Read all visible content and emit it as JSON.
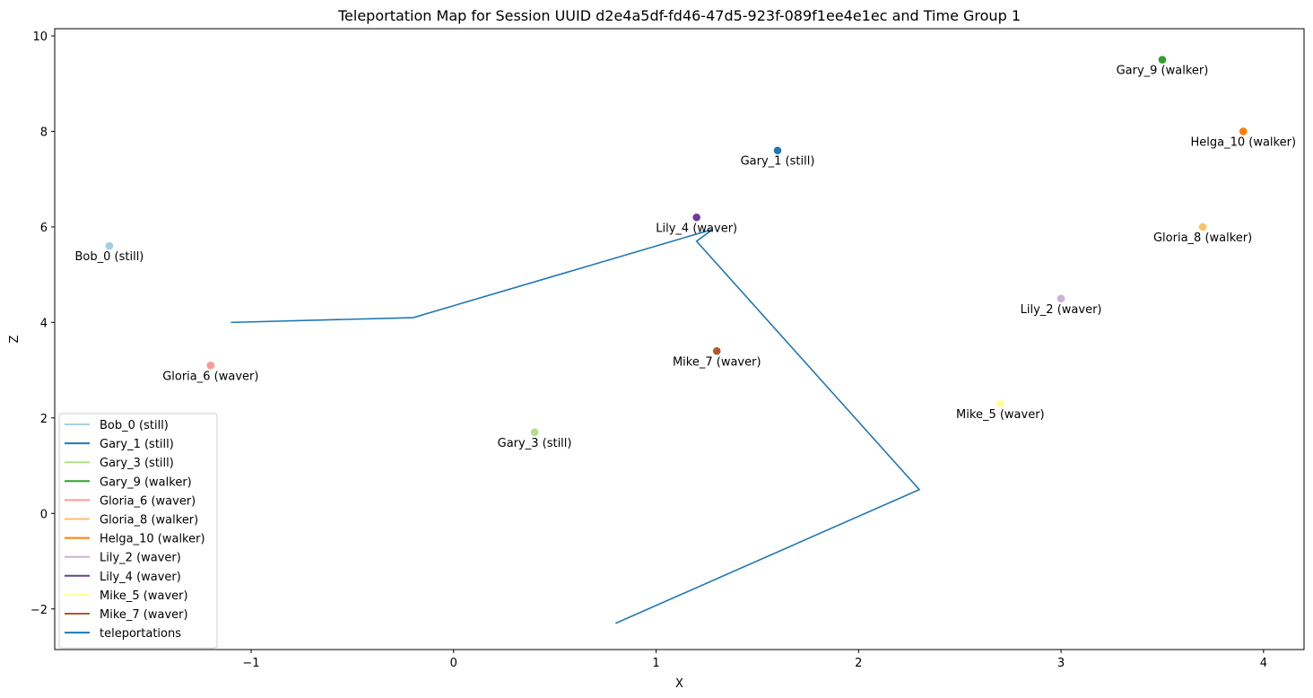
{
  "chart_data": {
    "type": "scatter",
    "title": "Teleportation Map for Session UUID d2e4a5df-fd46-47d5-923f-089f1ee4e1ec and Time Group 1",
    "xlabel": "X",
    "ylabel": "Z",
    "xlim": [
      -1.97,
      4.2
    ],
    "ylim": [
      -2.85,
      10.15
    ],
    "xticks": [
      -1,
      0,
      1,
      2,
      3,
      4
    ],
    "yticks": [
      -2,
      0,
      2,
      4,
      6,
      8,
      10
    ],
    "xtick_labels": [
      "−1",
      "0",
      "1",
      "2",
      "3",
      "4"
    ],
    "ytick_labels": [
      "−2",
      "0",
      "2",
      "4",
      "6",
      "8",
      "10"
    ],
    "grid": false,
    "legend_position": "lower-left",
    "series": [
      {
        "name": "Bob_0 (still)",
        "color": "#a6cee3",
        "x": -1.7,
        "y": 5.6
      },
      {
        "name": "Gary_1 (still)",
        "color": "#1f78b4",
        "x": 1.6,
        "y": 7.6
      },
      {
        "name": "Gary_3 (still)",
        "color": "#b2df8a",
        "x": 0.4,
        "y": 1.7
      },
      {
        "name": "Gary_9 (walker)",
        "color": "#33a02c",
        "x": 3.5,
        "y": 9.5
      },
      {
        "name": "Gloria_6 (waver)",
        "color": "#fb9a99",
        "x": -1.2,
        "y": 3.1
      },
      {
        "name": "Gloria_8 (walker)",
        "color": "#fdbf6f",
        "x": 3.7,
        "y": 6.0
      },
      {
        "name": "Helga_10 (walker)",
        "color": "#ff7f00",
        "x": 3.9,
        "y": 8.0
      },
      {
        "name": "Lily_2 (waver)",
        "color": "#cab2d6",
        "x": 3.0,
        "y": 4.5
      },
      {
        "name": "Lily_4 (waver)",
        "color": "#6a3d9a",
        "x": 1.2,
        "y": 6.2
      },
      {
        "name": "Mike_5 (waver)",
        "color": "#ffff99",
        "x": 2.7,
        "y": 2.3
      },
      {
        "name": "Mike_7 (waver)",
        "color": "#b15928",
        "x": 1.3,
        "y": 3.4
      }
    ],
    "teleportations": {
      "name": "teleportations",
      "color": "#1f77b4",
      "x": [
        -1.1,
        -0.2,
        1.28,
        1.2,
        2.3,
        0.8
      ],
      "y": [
        4.0,
        4.1,
        5.95,
        5.7,
        0.5,
        -2.3
      ]
    }
  }
}
